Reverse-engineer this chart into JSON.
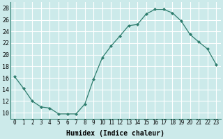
{
  "x": [
    0,
    1,
    2,
    3,
    4,
    5,
    6,
    7,
    8,
    9,
    10,
    11,
    12,
    13,
    14,
    15,
    16,
    17,
    18,
    19,
    20,
    21,
    22,
    23
  ],
  "y": [
    16.2,
    14.2,
    12.0,
    11.0,
    10.8,
    9.8,
    9.8,
    9.8,
    11.5,
    15.8,
    19.5,
    21.5,
    23.2,
    25.0,
    25.2,
    27.0,
    27.8,
    27.8,
    27.2,
    25.8,
    23.5,
    22.2,
    21.0,
    18.3
  ],
  "line_color": "#2e7d6e",
  "marker": "D",
  "markersize": 2.0,
  "bg_color": "#cceaea",
  "grid_color": "#ffffff",
  "xlabel": "Humidex (Indice chaleur)",
  "xlabel_fontsize": 7,
  "yticks": [
    10,
    12,
    14,
    16,
    18,
    20,
    22,
    24,
    26,
    28
  ],
  "xtick_labels": [
    "0",
    "1",
    "2",
    "3",
    "4",
    "5",
    "6",
    "7",
    "8",
    "9",
    "10",
    "11",
    "12",
    "13",
    "14",
    "15",
    "16",
    "17",
    "18",
    "19",
    "20",
    "21",
    "22",
    "23"
  ],
  "ylim": [
    9.0,
    29.0
  ],
  "xlim": [
    -0.5,
    23.5
  ]
}
